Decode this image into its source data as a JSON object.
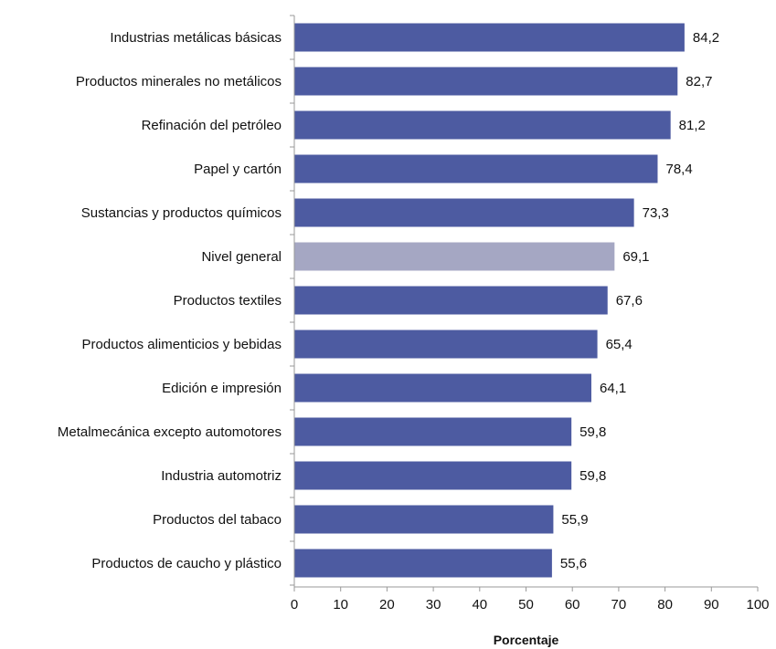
{
  "chart_data": {
    "type": "bar",
    "orientation": "horizontal",
    "categories": [
      "Industrias metálicas básicas",
      "Productos minerales no metálicos",
      "Refinación del petróleo",
      "Papel y cartón",
      "Sustancias y productos químicos",
      "Nivel general",
      "Productos textiles",
      "Productos alimenticios y bebidas",
      "Edición e impresión",
      "Metalmecánica excepto automotores",
      "Industria automotriz",
      "Productos del tabaco",
      "Productos de caucho y plástico"
    ],
    "values": [
      84.2,
      82.7,
      81.2,
      78.4,
      73.3,
      69.1,
      67.6,
      65.4,
      64.1,
      59.8,
      59.8,
      55.9,
      55.6
    ],
    "value_labels": [
      "84,2",
      "82,7",
      "81,2",
      "78,4",
      "73,3",
      "69,1",
      "67,6",
      "65,4",
      "64,1",
      "59,8",
      "59,8",
      "55,9",
      "55,6"
    ],
    "highlight_category": "Nivel general",
    "xlabel": "Porcentaje",
    "xlim": [
      0,
      100
    ],
    "xticks": [
      0,
      10,
      20,
      30,
      40,
      50,
      60,
      70,
      80,
      90,
      100
    ],
    "grid": false,
    "legend": "none",
    "colors": {
      "bar": "#4d5ba1",
      "highlight": "#a5a7c3",
      "axis": "#999999"
    }
  }
}
